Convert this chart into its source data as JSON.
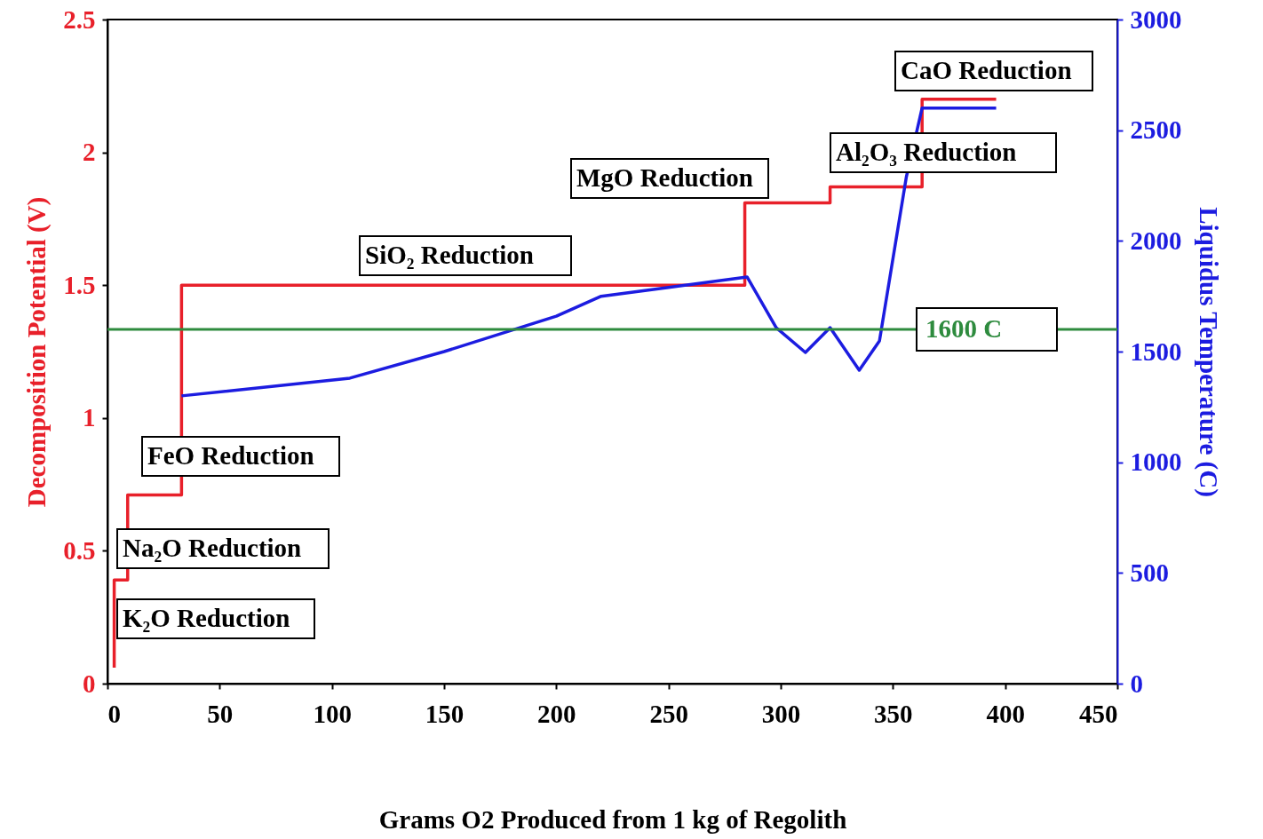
{
  "chart_data": {
    "type": "line",
    "xlabel": "Grams O2 Produced from 1 kg of Regolith",
    "ylabel": "Decomposition Potential (V)",
    "y2label": "Liquidus Temperature (C)",
    "xlim": [
      0,
      450
    ],
    "xticks": [
      0,
      50,
      100,
      150,
      200,
      250,
      300,
      350,
      400,
      450
    ],
    "ylim": [
      0,
      2.5
    ],
    "yticks": [
      0,
      0.5,
      1,
      1.5,
      2,
      2.5
    ],
    "y2lim": [
      0,
      3000
    ],
    "y2ticks": [
      0,
      500,
      1000,
      1500,
      2000,
      2500,
      3000
    ],
    "series": [
      {
        "color": "#e8202a",
        "x": [
          3,
          3,
          9,
          9,
          33,
          33,
          284,
          284,
          322,
          322,
          363,
          363,
          396
        ],
        "values": [
          0.06,
          0.39,
          0.39,
          0.71,
          0.71,
          1.5,
          1.5,
          1.81,
          1.81,
          1.87,
          1.87,
          2.2,
          2.2
        ]
      },
      {
        "color": "#1c1ce0",
        "axis": "y2",
        "x": [
          33,
          108,
          150,
          200,
          220,
          250,
          285,
          298,
          311,
          322,
          335,
          344,
          356,
          363,
          396
        ],
        "values": [
          1300,
          1380,
          1500,
          1660,
          1750,
          1790,
          1837,
          1608,
          1496,
          1608,
          1416,
          1548,
          2290,
          2600,
          2600
        ]
      }
    ],
    "ref_lines": [
      {
        "axis": "y2",
        "value": 1600,
        "label": "1600 C",
        "color": "#2e8b3e"
      }
    ],
    "annotations": [
      "K₂O Reduction",
      "Na₂O Reduction",
      "FeO Reduction",
      "SiO₂ Reduction",
      "MgO Reduction",
      "Al₂O₃ Reduction",
      "CaO Reduction"
    ]
  }
}
